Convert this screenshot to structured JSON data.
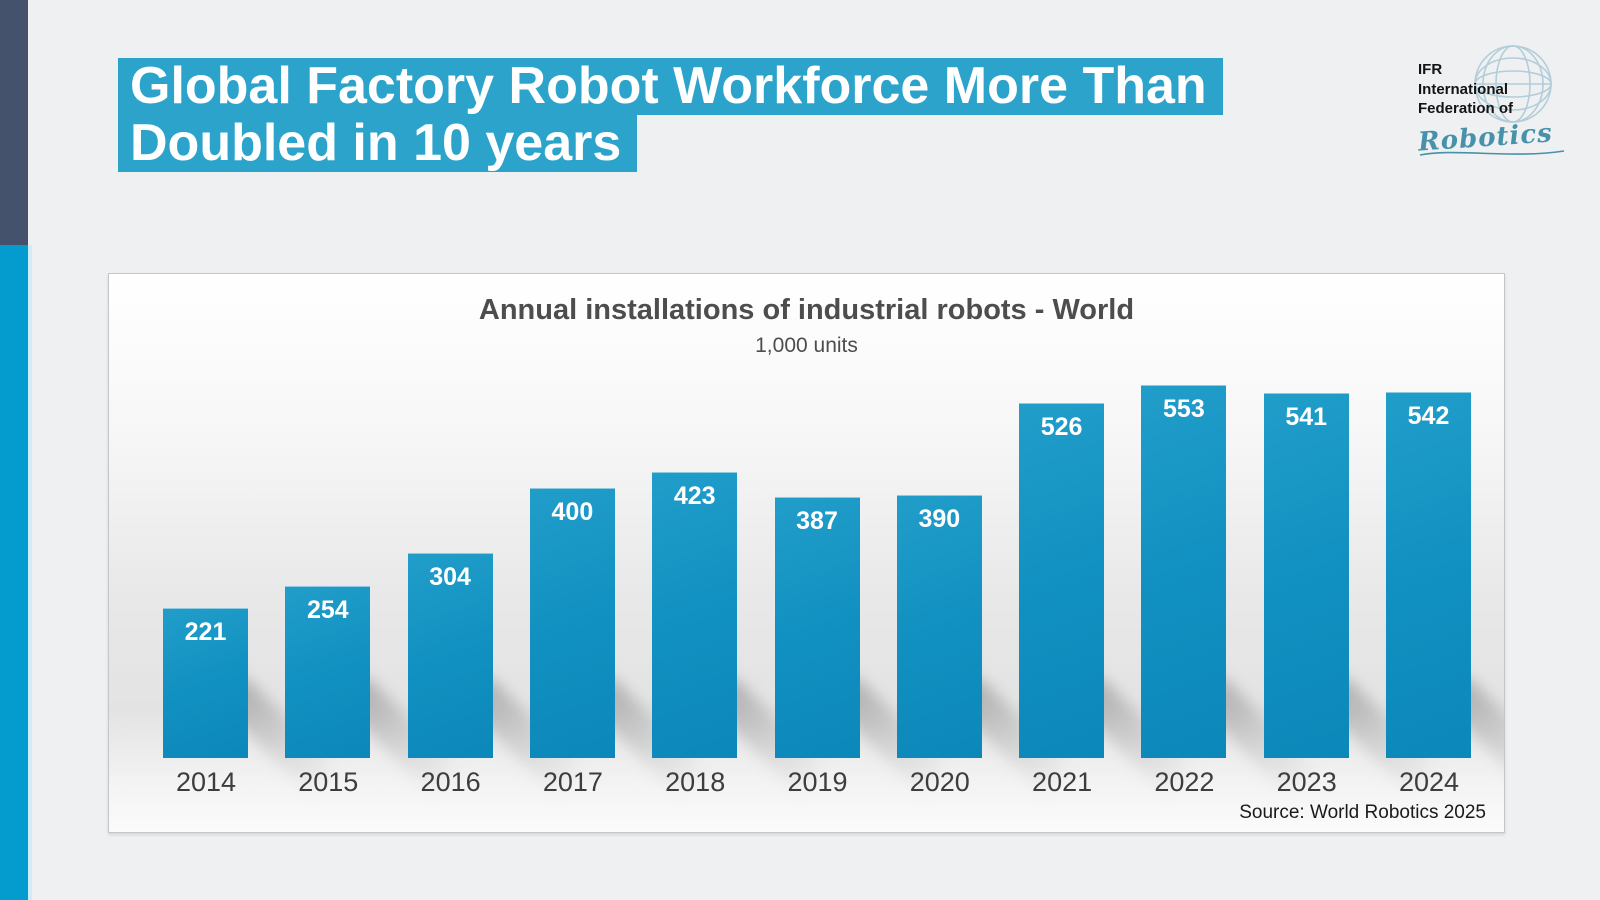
{
  "page": {
    "background_color": "#eff0f1"
  },
  "accent_stripe": {
    "top_color": "#44526b",
    "bottom_color": "#049bce"
  },
  "header": {
    "title_line1": "Global Factory Robot Workforce More Than",
    "title_line2": "Doubled in 10 years",
    "highlight_color": "#2ba3cb",
    "text_color": "#ffffff"
  },
  "logo": {
    "line1": "IFR",
    "line2": "International",
    "line3": "Federation of",
    "script": "Robotics",
    "text_color": "#141414",
    "script_color": "#4791aa",
    "globe_color": "#b3cdd9"
  },
  "chart_data": {
    "type": "bar",
    "title": "Annual installations of industrial robots - World",
    "subtitle": "1,000 units",
    "ylabel": "1,000 units",
    "categories": [
      "2014",
      "2015",
      "2016",
      "2017",
      "2018",
      "2019",
      "2020",
      "2021",
      "2022",
      "2023",
      "2024"
    ],
    "values": [
      221,
      254,
      304,
      400,
      423,
      387,
      390,
      526,
      553,
      541,
      542
    ],
    "value_labels": [
      "221",
      "254",
      "304",
      "400",
      "423",
      "387",
      "390",
      "526",
      "553",
      "541",
      "542"
    ],
    "source": "Source: World Robotics 2025",
    "bar_color": "#1191c1",
    "value_label_color": "#ffffff",
    "axis_label_color": "#3d3d3d",
    "ylim": [
      0,
      600
    ],
    "grid": false,
    "legend": false
  }
}
